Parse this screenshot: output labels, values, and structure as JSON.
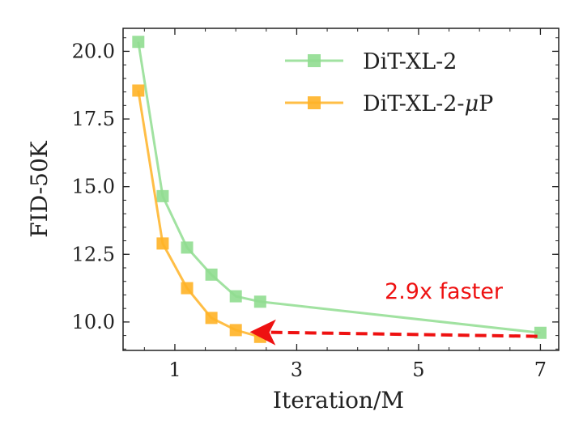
{
  "chart_data": {
    "type": "line",
    "xlabel": "Iteration/M",
    "ylabel": "FID-50K",
    "xlim": [
      0.15,
      7.3
    ],
    "ylim": [
      8.95,
      20.85
    ],
    "xticks": [
      1,
      3,
      5,
      7
    ],
    "xtick_labels": [
      "1",
      "3",
      "5",
      "7"
    ],
    "yticks": [
      10.0,
      12.5,
      15.0,
      17.5,
      20.0
    ],
    "ytick_labels": [
      "10.0",
      "12.5",
      "15.0",
      "17.5",
      "20.0"
    ],
    "grid": false,
    "legend_placement": "top-right",
    "series": [
      {
        "name": "DiT-XL-2",
        "color": "#90dd90",
        "marker": "square",
        "x": [
          0.4,
          0.8,
          1.2,
          1.6,
          2.0,
          2.4,
          7.0
        ],
        "y": [
          20.35,
          14.65,
          12.75,
          11.75,
          10.95,
          10.75,
          9.6
        ]
      },
      {
        "name": "DiT-XL-2-",
        "name_mu": "μ",
        "name_suffix": "P",
        "color": "#ffb326",
        "marker": "square",
        "x": [
          0.4,
          0.8,
          1.2,
          1.6,
          2.0,
          2.4
        ],
        "y": [
          18.55,
          12.9,
          11.25,
          10.15,
          9.7,
          9.45
        ]
      }
    ],
    "annotation": {
      "text": "2.9x faster",
      "color": "#ee1111",
      "arrow_from": [
        6.95,
        9.47
      ],
      "arrow_to": [
        2.55,
        9.62
      ]
    }
  }
}
